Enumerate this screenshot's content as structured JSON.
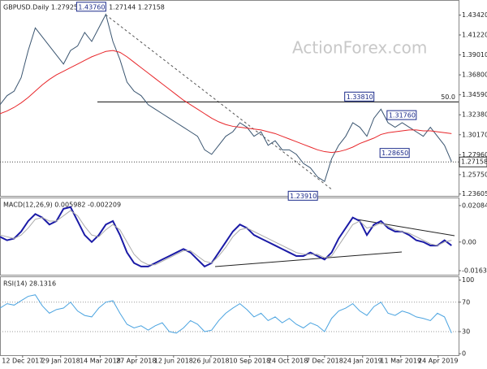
{
  "chart_data": [
    {
      "type": "line",
      "title": "GBPUSD.Daily 1.27925 1.27981 1.27144 1.27158",
      "watermark": "ActionForex.com",
      "xlim": [
        0,
        65
      ],
      "ylim": [
        1.234,
        1.45
      ],
      "yticks": [
        {
          "value": 1.4342,
          "label": "1.43420"
        },
        {
          "value": 1.4122,
          "label": "1.41220"
        },
        {
          "value": 1.3901,
          "label": "1.39010"
        },
        {
          "value": 1.368,
          "label": "1.36800"
        },
        {
          "value": 1.3459,
          "label": "1.34590"
        },
        {
          "value": 1.3238,
          "label": "1.32380"
        },
        {
          "value": 1.3017,
          "label": "1.30170"
        },
        {
          "value": 1.2796,
          "label": "1.27960"
        },
        {
          "value": 1.2575,
          "label": "1.25750"
        },
        1.23605
      ],
      "last_price": {
        "value": 1.27158,
        "label": "1.27158"
      },
      "levels": [
        {
          "value": 1.3381,
          "label": "50.0"
        }
      ],
      "annotations": [
        {
          "x": 15,
          "value": 1.4376,
          "label": "1.43760"
        },
        {
          "x": 53,
          "value": 1.3381,
          "label": "1.33810"
        },
        {
          "x": 59,
          "value": 1.3176,
          "label": "1.31760"
        },
        {
          "x": 58,
          "value": 1.2865,
          "label": "1.28650"
        },
        {
          "x": 45,
          "value": 1.2391,
          "label": "1.23910"
        }
      ],
      "series": [
        {
          "name": "GBPUSD",
          "color": "#3a5570",
          "values": [
            1.335,
            1.345,
            1.35,
            1.365,
            1.395,
            1.42,
            1.41,
            1.4,
            1.39,
            1.38,
            1.395,
            1.4,
            1.415,
            1.405,
            1.42,
            1.435,
            1.405,
            1.385,
            1.36,
            1.35,
            1.345,
            1.335,
            1.33,
            1.325,
            1.32,
            1.315,
            1.31,
            1.305,
            1.3,
            1.285,
            1.28,
            1.29,
            1.3,
            1.305,
            1.315,
            1.31,
            1.3,
            1.305,
            1.29,
            1.295,
            1.285,
            1.285,
            1.28,
            1.27,
            1.265,
            1.255,
            1.25,
            1.275,
            1.29,
            1.3,
            1.315,
            1.31,
            1.3,
            1.32,
            1.33,
            1.315,
            1.31,
            1.315,
            1.31,
            1.305,
            1.3,
            1.31,
            1.3,
            1.29,
            1.272
          ]
        },
        {
          "name": "MA",
          "color": "#e8262a",
          "values": [
            1.325,
            1.328,
            1.332,
            1.337,
            1.343,
            1.35,
            1.357,
            1.363,
            1.368,
            1.372,
            1.376,
            1.38,
            1.384,
            1.388,
            1.391,
            1.394,
            1.395,
            1.393,
            1.388,
            1.382,
            1.376,
            1.37,
            1.364,
            1.358,
            1.352,
            1.346,
            1.34,
            1.335,
            1.33,
            1.325,
            1.32,
            1.316,
            1.313,
            1.311,
            1.31,
            1.309,
            1.308,
            1.307,
            1.305,
            1.303,
            1.3,
            1.297,
            1.294,
            1.291,
            1.288,
            1.285,
            1.283,
            1.282,
            1.283,
            1.285,
            1.288,
            1.292,
            1.295,
            1.298,
            1.302,
            1.304,
            1.305,
            1.306,
            1.307,
            1.307,
            1.306,
            1.306,
            1.305,
            1.304,
            1.303
          ]
        }
      ]
    },
    {
      "type": "line",
      "title": "MACD(12,26,9) 0.005982 -0.002209",
      "xlim": [
        0,
        65
      ],
      "ylim": [
        -0.0187,
        0.025
      ],
      "yticks": [
        0.020848,
        {
          "value": 0,
          "label": "0.00"
        },
        -0.016389
      ],
      "series": [
        {
          "name": "MACD",
          "color": "#1a1aa6",
          "values": [
            0.003,
            0.001,
            0.002,
            0.006,
            0.012,
            0.016,
            0.014,
            0.01,
            0.012,
            0.019,
            0.02,
            0.012,
            0.004,
            0.0,
            0.004,
            0.01,
            0.012,
            0.004,
            -0.006,
            -0.012,
            -0.014,
            -0.014,
            -0.012,
            -0.01,
            -0.008,
            -0.006,
            -0.004,
            -0.006,
            -0.01,
            -0.014,
            -0.012,
            -0.006,
            0.0,
            0.006,
            0.01,
            0.008,
            0.004,
            0.002,
            0.0,
            -0.002,
            -0.004,
            -0.006,
            -0.008,
            -0.008,
            -0.006,
            -0.008,
            -0.01,
            -0.006,
            0.002,
            0.008,
            0.014,
            0.012,
            0.004,
            0.01,
            0.012,
            0.008,
            0.006,
            0.006,
            0.004,
            0.001,
            0.0,
            -0.002,
            -0.002,
            0.001,
            -0.002
          ]
        },
        {
          "name": "Signal",
          "color": "#aaaaaa",
          "values": [
            0.004,
            0.003,
            0.002,
            0.004,
            0.008,
            0.013,
            0.014,
            0.012,
            0.012,
            0.015,
            0.018,
            0.015,
            0.009,
            0.004,
            0.003,
            0.007,
            0.01,
            0.007,
            0.0,
            -0.007,
            -0.011,
            -0.013,
            -0.013,
            -0.011,
            -0.009,
            -0.007,
            -0.005,
            -0.005,
            -0.008,
            -0.011,
            -0.012,
            -0.008,
            -0.003,
            0.003,
            0.007,
            0.008,
            0.006,
            0.004,
            0.002,
            0.0,
            -0.002,
            -0.004,
            -0.006,
            -0.007,
            -0.007,
            -0.007,
            -0.009,
            -0.008,
            -0.002,
            0.004,
            0.01,
            0.012,
            0.008,
            0.009,
            0.011,
            0.009,
            0.007,
            0.006,
            0.005,
            0.003,
            0.001,
            -0.001,
            -0.002,
            0.0,
            0.001
          ]
        }
      ]
    },
    {
      "type": "line",
      "title": "RSI(14) 28.1316",
      "xlim": [
        0,
        65
      ],
      "ylim": [
        -2,
        104
      ],
      "yticks": [
        100,
        70,
        30,
        0
      ],
      "xticks": [
        {
          "value": 3.2,
          "label": "12 Dec 2017"
        },
        {
          "value": 8.6,
          "label": "29 Jan 2018"
        },
        {
          "value": 14.2,
          "label": "14 Mar 2018"
        },
        {
          "value": 19.3,
          "label": "27 Apr 2018"
        },
        {
          "value": 24.6,
          "label": "12 Jun 2018"
        },
        {
          "value": 29.9,
          "label": "26 Jul 2018"
        },
        {
          "value": 35.4,
          "label": "10 Sep 2018"
        },
        {
          "value": 40.8,
          "label": "24 Oct 2018"
        },
        {
          "value": 46,
          "label": "7 Dec 2018"
        },
        {
          "value": 51.4,
          "label": "24 Jan 2019"
        },
        {
          "value": 56.8,
          "label": "11 Mar 2019"
        },
        {
          "value": 62.1,
          "label": "24 Apr 2019"
        }
      ],
      "series": [
        {
          "name": "RSI",
          "color": "#4aa3e0",
          "values": [
            62,
            68,
            66,
            72,
            78,
            80,
            65,
            55,
            60,
            62,
            70,
            58,
            52,
            50,
            62,
            70,
            72,
            55,
            40,
            35,
            38,
            32,
            38,
            42,
            30,
            28,
            35,
            45,
            40,
            30,
            32,
            45,
            55,
            62,
            68,
            60,
            50,
            55,
            45,
            50,
            42,
            48,
            40,
            35,
            42,
            38,
            30,
            48,
            58,
            62,
            68,
            58,
            52,
            64,
            70,
            55,
            52,
            58,
            55,
            50,
            48,
            45,
            55,
            50,
            28
          ]
        }
      ]
    }
  ]
}
